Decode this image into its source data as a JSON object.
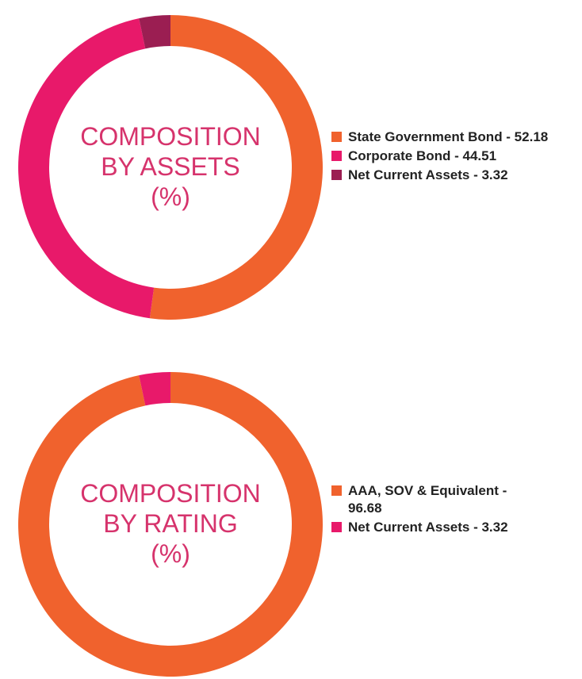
{
  "chart_data": [
    {
      "type": "pie",
      "title_lines": [
        "COMPOSITION",
        "BY ASSETS",
        "(%)"
      ],
      "slices": [
        {
          "label": "State Government Bond",
          "value": 52.18,
          "legend": "State Government Bond - 52.18",
          "color": "#f0622d"
        },
        {
          "label": "Corporate Bond",
          "value": 44.51,
          "legend": "Corporate Bond - 44.51",
          "color": "#e8196a"
        },
        {
          "label": "Net Current Assets",
          "value": 3.32,
          "legend": "Net Current Assets - 3.32",
          "color": "#9b1e52"
        }
      ],
      "start": "top",
      "direction": "clockwise",
      "legend_position": "right"
    },
    {
      "type": "pie",
      "title_lines": [
        "COMPOSITION",
        "BY RATING",
        "(%)"
      ],
      "slices": [
        {
          "label": "AAA, SOV & Equivalent",
          "value": 96.68,
          "legend": "AAA, SOV & Equivalent - 96.68",
          "color": "#f0622d"
        },
        {
          "label": "Net Current Assets",
          "value": 3.32,
          "legend": "Net Current Assets - 3.32",
          "color": "#e8196a"
        }
      ],
      "start": "top",
      "direction": "clockwise",
      "legend_position": "right"
    }
  ]
}
